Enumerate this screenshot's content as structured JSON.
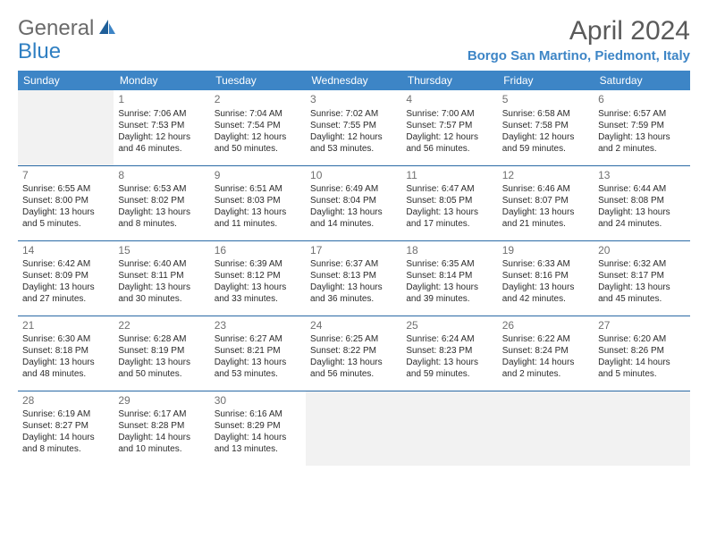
{
  "logo": {
    "general": "General",
    "blue": "Blue"
  },
  "header": {
    "month_title": "April 2024",
    "location": "Borgo San Martino, Piedmont, Italy"
  },
  "colors": {
    "header_bg": "#3d85c6",
    "header_text": "#ffffff",
    "border": "#2a6aa5",
    "empty_bg": "#f2f2f2",
    "daynum": "#707070",
    "body_text": "#2b2b2b",
    "title_text": "#5a5a5a",
    "location_text": "#3d85c6",
    "logo_gray": "#6a6a6a",
    "logo_blue": "#2f7fc2"
  },
  "day_headers": [
    "Sunday",
    "Monday",
    "Tuesday",
    "Wednesday",
    "Thursday",
    "Friday",
    "Saturday"
  ],
  "weeks": [
    [
      {
        "empty": true
      },
      {
        "day": "1",
        "sunrise": "Sunrise: 7:06 AM",
        "sunset": "Sunset: 7:53 PM",
        "dl1": "Daylight: 12 hours",
        "dl2": "and 46 minutes."
      },
      {
        "day": "2",
        "sunrise": "Sunrise: 7:04 AM",
        "sunset": "Sunset: 7:54 PM",
        "dl1": "Daylight: 12 hours",
        "dl2": "and 50 minutes."
      },
      {
        "day": "3",
        "sunrise": "Sunrise: 7:02 AM",
        "sunset": "Sunset: 7:55 PM",
        "dl1": "Daylight: 12 hours",
        "dl2": "and 53 minutes."
      },
      {
        "day": "4",
        "sunrise": "Sunrise: 7:00 AM",
        "sunset": "Sunset: 7:57 PM",
        "dl1": "Daylight: 12 hours",
        "dl2": "and 56 minutes."
      },
      {
        "day": "5",
        "sunrise": "Sunrise: 6:58 AM",
        "sunset": "Sunset: 7:58 PM",
        "dl1": "Daylight: 12 hours",
        "dl2": "and 59 minutes."
      },
      {
        "day": "6",
        "sunrise": "Sunrise: 6:57 AM",
        "sunset": "Sunset: 7:59 PM",
        "dl1": "Daylight: 13 hours",
        "dl2": "and 2 minutes."
      }
    ],
    [
      {
        "day": "7",
        "sunrise": "Sunrise: 6:55 AM",
        "sunset": "Sunset: 8:00 PM",
        "dl1": "Daylight: 13 hours",
        "dl2": "and 5 minutes."
      },
      {
        "day": "8",
        "sunrise": "Sunrise: 6:53 AM",
        "sunset": "Sunset: 8:02 PM",
        "dl1": "Daylight: 13 hours",
        "dl2": "and 8 minutes."
      },
      {
        "day": "9",
        "sunrise": "Sunrise: 6:51 AM",
        "sunset": "Sunset: 8:03 PM",
        "dl1": "Daylight: 13 hours",
        "dl2": "and 11 minutes."
      },
      {
        "day": "10",
        "sunrise": "Sunrise: 6:49 AM",
        "sunset": "Sunset: 8:04 PM",
        "dl1": "Daylight: 13 hours",
        "dl2": "and 14 minutes."
      },
      {
        "day": "11",
        "sunrise": "Sunrise: 6:47 AM",
        "sunset": "Sunset: 8:05 PM",
        "dl1": "Daylight: 13 hours",
        "dl2": "and 17 minutes."
      },
      {
        "day": "12",
        "sunrise": "Sunrise: 6:46 AM",
        "sunset": "Sunset: 8:07 PM",
        "dl1": "Daylight: 13 hours",
        "dl2": "and 21 minutes."
      },
      {
        "day": "13",
        "sunrise": "Sunrise: 6:44 AM",
        "sunset": "Sunset: 8:08 PM",
        "dl1": "Daylight: 13 hours",
        "dl2": "and 24 minutes."
      }
    ],
    [
      {
        "day": "14",
        "sunrise": "Sunrise: 6:42 AM",
        "sunset": "Sunset: 8:09 PM",
        "dl1": "Daylight: 13 hours",
        "dl2": "and 27 minutes."
      },
      {
        "day": "15",
        "sunrise": "Sunrise: 6:40 AM",
        "sunset": "Sunset: 8:11 PM",
        "dl1": "Daylight: 13 hours",
        "dl2": "and 30 minutes."
      },
      {
        "day": "16",
        "sunrise": "Sunrise: 6:39 AM",
        "sunset": "Sunset: 8:12 PM",
        "dl1": "Daylight: 13 hours",
        "dl2": "and 33 minutes."
      },
      {
        "day": "17",
        "sunrise": "Sunrise: 6:37 AM",
        "sunset": "Sunset: 8:13 PM",
        "dl1": "Daylight: 13 hours",
        "dl2": "and 36 minutes."
      },
      {
        "day": "18",
        "sunrise": "Sunrise: 6:35 AM",
        "sunset": "Sunset: 8:14 PM",
        "dl1": "Daylight: 13 hours",
        "dl2": "and 39 minutes."
      },
      {
        "day": "19",
        "sunrise": "Sunrise: 6:33 AM",
        "sunset": "Sunset: 8:16 PM",
        "dl1": "Daylight: 13 hours",
        "dl2": "and 42 minutes."
      },
      {
        "day": "20",
        "sunrise": "Sunrise: 6:32 AM",
        "sunset": "Sunset: 8:17 PM",
        "dl1": "Daylight: 13 hours",
        "dl2": "and 45 minutes."
      }
    ],
    [
      {
        "day": "21",
        "sunrise": "Sunrise: 6:30 AM",
        "sunset": "Sunset: 8:18 PM",
        "dl1": "Daylight: 13 hours",
        "dl2": "and 48 minutes."
      },
      {
        "day": "22",
        "sunrise": "Sunrise: 6:28 AM",
        "sunset": "Sunset: 8:19 PM",
        "dl1": "Daylight: 13 hours",
        "dl2": "and 50 minutes."
      },
      {
        "day": "23",
        "sunrise": "Sunrise: 6:27 AM",
        "sunset": "Sunset: 8:21 PM",
        "dl1": "Daylight: 13 hours",
        "dl2": "and 53 minutes."
      },
      {
        "day": "24",
        "sunrise": "Sunrise: 6:25 AM",
        "sunset": "Sunset: 8:22 PM",
        "dl1": "Daylight: 13 hours",
        "dl2": "and 56 minutes."
      },
      {
        "day": "25",
        "sunrise": "Sunrise: 6:24 AM",
        "sunset": "Sunset: 8:23 PM",
        "dl1": "Daylight: 13 hours",
        "dl2": "and 59 minutes."
      },
      {
        "day": "26",
        "sunrise": "Sunrise: 6:22 AM",
        "sunset": "Sunset: 8:24 PM",
        "dl1": "Daylight: 14 hours",
        "dl2": "and 2 minutes."
      },
      {
        "day": "27",
        "sunrise": "Sunrise: 6:20 AM",
        "sunset": "Sunset: 8:26 PM",
        "dl1": "Daylight: 14 hours",
        "dl2": "and 5 minutes."
      }
    ],
    [
      {
        "day": "28",
        "sunrise": "Sunrise: 6:19 AM",
        "sunset": "Sunset: 8:27 PM",
        "dl1": "Daylight: 14 hours",
        "dl2": "and 8 minutes."
      },
      {
        "day": "29",
        "sunrise": "Sunrise: 6:17 AM",
        "sunset": "Sunset: 8:28 PM",
        "dl1": "Daylight: 14 hours",
        "dl2": "and 10 minutes."
      },
      {
        "day": "30",
        "sunrise": "Sunrise: 6:16 AM",
        "sunset": "Sunset: 8:29 PM",
        "dl1": "Daylight: 14 hours",
        "dl2": "and 13 minutes."
      },
      {
        "empty": true
      },
      {
        "empty": true
      },
      {
        "empty": true
      },
      {
        "empty": true
      }
    ]
  ]
}
